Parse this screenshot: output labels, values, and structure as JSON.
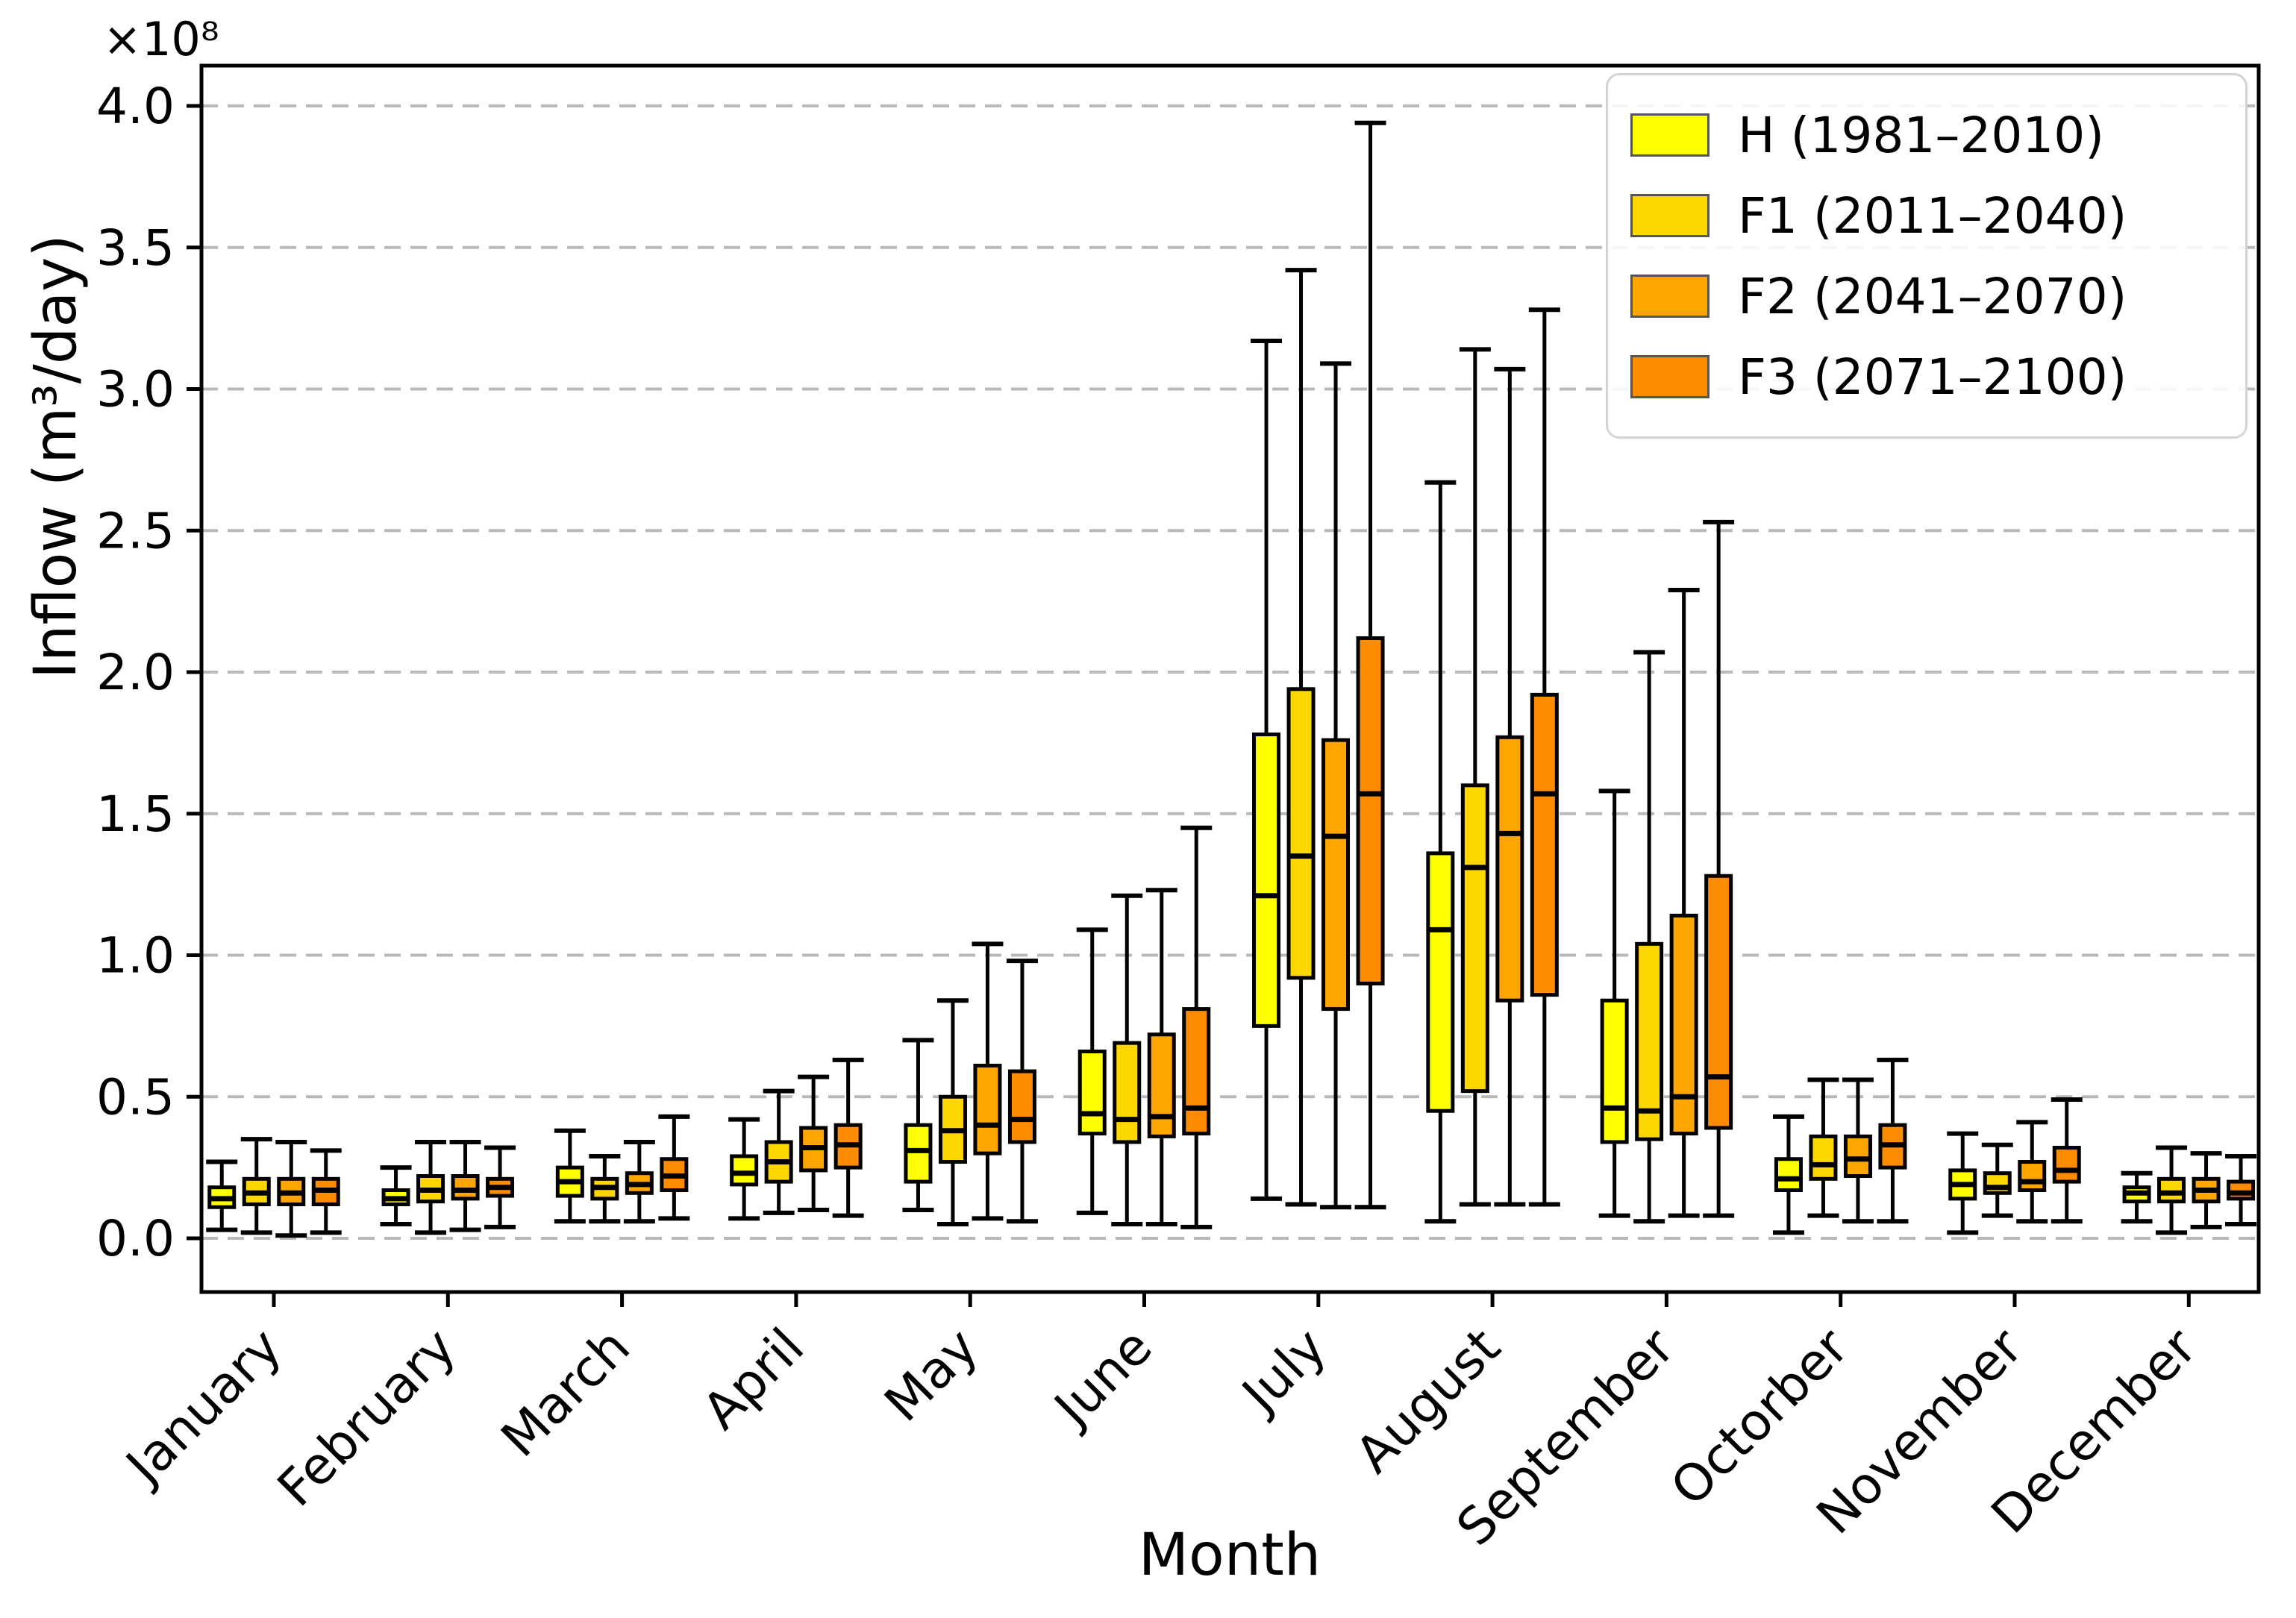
{
  "figure": {
    "y_axis_label": "Inflow (m³/day)",
    "x_axis_label": "Month",
    "offset_label": "×10⁸"
  },
  "chart_data": {
    "type": "boxplot",
    "title": "",
    "xlabel": "Month",
    "ylabel": "Inflow (m³/day)",
    "value_scale": "×10⁸ m³/day",
    "stats_format": [
      "whisker_low",
      "q1",
      "median",
      "q3",
      "whisker_high"
    ],
    "ylim": [
      -0.19,
      4.14
    ],
    "y_ticks": [
      "0.0",
      "0.5",
      "1.0",
      "1.5",
      "2.0",
      "2.5",
      "3.0",
      "3.5",
      "4.0"
    ],
    "grid": "horizontal dashed gray",
    "legend_position": "upper right",
    "categories": [
      "January",
      "February",
      "March",
      "April",
      "May",
      "June",
      "July",
      "August",
      "September",
      "Octorber",
      "November",
      "December"
    ],
    "series": [
      {
        "name": "H (1981–2010)",
        "color": "#ffff00",
        "edge_color": "#000000",
        "boxes": [
          [
            0.03,
            0.11,
            0.14,
            0.18,
            0.27
          ],
          [
            0.05,
            0.12,
            0.14,
            0.17,
            0.25
          ],
          [
            0.06,
            0.15,
            0.2,
            0.25,
            0.38
          ],
          [
            0.07,
            0.19,
            0.23,
            0.29,
            0.42
          ],
          [
            0.1,
            0.2,
            0.31,
            0.4,
            0.7
          ],
          [
            0.09,
            0.37,
            0.44,
            0.66,
            1.09
          ],
          [
            0.14,
            0.75,
            1.21,
            1.78,
            3.17
          ],
          [
            0.06,
            0.45,
            1.09,
            1.36,
            2.67
          ],
          [
            0.08,
            0.34,
            0.46,
            0.84,
            1.58
          ],
          [
            0.02,
            0.17,
            0.21,
            0.28,
            0.43
          ],
          [
            0.02,
            0.14,
            0.19,
            0.24,
            0.37
          ],
          [
            0.06,
            0.13,
            0.16,
            0.18,
            0.23
          ]
        ]
      },
      {
        "name": "F1 (2011–2040)",
        "color": "#ffd700",
        "edge_color": "#000000",
        "boxes": [
          [
            0.02,
            0.12,
            0.16,
            0.21,
            0.35
          ],
          [
            0.02,
            0.13,
            0.17,
            0.22,
            0.34
          ],
          [
            0.06,
            0.14,
            0.18,
            0.21,
            0.29
          ],
          [
            0.09,
            0.2,
            0.27,
            0.34,
            0.52
          ],
          [
            0.05,
            0.27,
            0.38,
            0.5,
            0.84
          ],
          [
            0.05,
            0.34,
            0.42,
            0.69,
            1.21
          ],
          [
            0.12,
            0.92,
            1.35,
            1.94,
            3.42
          ],
          [
            0.12,
            0.52,
            1.31,
            1.6,
            3.14
          ],
          [
            0.06,
            0.35,
            0.45,
            1.04,
            2.07
          ],
          [
            0.08,
            0.21,
            0.26,
            0.36,
            0.56
          ],
          [
            0.08,
            0.16,
            0.18,
            0.23,
            0.33
          ],
          [
            0.02,
            0.13,
            0.16,
            0.21,
            0.32
          ]
        ]
      },
      {
        "name": "F2 (2041–2070)",
        "color": "#ffa500",
        "edge_color": "#000000",
        "boxes": [
          [
            0.01,
            0.12,
            0.16,
            0.21,
            0.34
          ],
          [
            0.03,
            0.14,
            0.17,
            0.22,
            0.34
          ],
          [
            0.06,
            0.16,
            0.19,
            0.23,
            0.34
          ],
          [
            0.1,
            0.24,
            0.32,
            0.39,
            0.57
          ],
          [
            0.07,
            0.3,
            0.4,
            0.61,
            1.04
          ],
          [
            0.05,
            0.36,
            0.43,
            0.72,
            1.23
          ],
          [
            0.11,
            0.81,
            1.42,
            1.76,
            3.09
          ],
          [
            0.12,
            0.84,
            1.43,
            1.77,
            3.07
          ],
          [
            0.08,
            0.37,
            0.5,
            1.14,
            2.29
          ],
          [
            0.06,
            0.22,
            0.28,
            0.36,
            0.56
          ],
          [
            0.06,
            0.17,
            0.2,
            0.27,
            0.41
          ],
          [
            0.04,
            0.13,
            0.17,
            0.21,
            0.3
          ]
        ]
      },
      {
        "name": "F3 (2071–2100)",
        "color": "#ff8c00",
        "edge_color": "#000000",
        "boxes": [
          [
            0.02,
            0.12,
            0.17,
            0.21,
            0.31
          ],
          [
            0.04,
            0.15,
            0.18,
            0.21,
            0.32
          ],
          [
            0.07,
            0.17,
            0.22,
            0.28,
            0.43
          ],
          [
            0.08,
            0.25,
            0.33,
            0.4,
            0.63
          ],
          [
            0.06,
            0.34,
            0.42,
            0.59,
            0.98
          ],
          [
            0.04,
            0.37,
            0.46,
            0.81,
            1.45
          ],
          [
            0.11,
            0.9,
            1.57,
            2.12,
            3.94
          ],
          [
            0.12,
            0.86,
            1.57,
            1.92,
            3.28
          ],
          [
            0.08,
            0.39,
            0.57,
            1.28,
            2.53
          ],
          [
            0.06,
            0.25,
            0.33,
            0.4,
            0.63
          ],
          [
            0.06,
            0.2,
            0.24,
            0.32,
            0.49
          ],
          [
            0.05,
            0.14,
            0.16,
            0.2,
            0.29
          ]
        ]
      }
    ]
  }
}
